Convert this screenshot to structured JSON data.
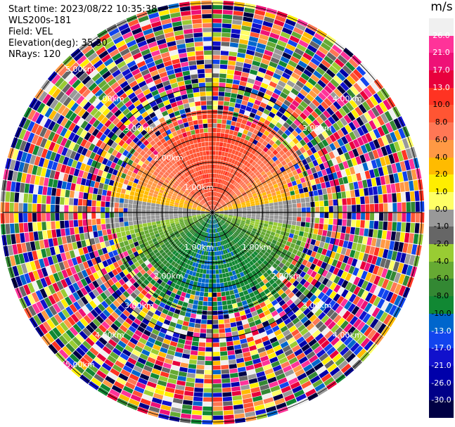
{
  "header": {
    "start_time": "Start time: 2023/08/22 10:35:38",
    "instrument": "WLS200s-181",
    "field": "Field: VEL",
    "elevation": "Elevation(deg): 35.30",
    "nrays": "NRays: 120"
  },
  "range_labels": {
    "r1": "1.00km",
    "r2": "2.00km",
    "r3": "3.00km",
    "r4": "4.00km",
    "r5": "5.00km"
  },
  "colorbar": {
    "unit": "m/s",
    "ticks": [
      "26.0",
      "21.0",
      "17.0",
      "13.0",
      "10.0",
      "8.0",
      "6.0",
      "4.0",
      "2.0",
      "1.0",
      "0.0",
      "-1.0",
      "-2.0",
      "-4.0",
      "-6.0",
      "-8.0",
      "-10.0",
      "-13.0",
      "-17.0",
      "-21.0",
      "-26.0",
      "-30.0"
    ],
    "colors": [
      "#f0f0f0",
      "#ff3399",
      "#ee1177",
      "#e8003c",
      "#ff3322",
      "#ff5533",
      "#ff7755",
      "#ff9944",
      "#ffbb00",
      "#ffee00",
      "#ffff66",
      "#999999",
      "#666666",
      "#99cc33",
      "#66aa33",
      "#338833",
      "#118833",
      "#0066cc",
      "#1144ee",
      "#1111cc",
      "#0000aa",
      "#000088",
      "#000044"
    ]
  },
  "chart_data": {
    "type": "heatmap",
    "title": "",
    "field": "VEL",
    "unit": "m/s",
    "nrays": 120,
    "range_rings_km": [
      1,
      2,
      3,
      4,
      5
    ],
    "max_range_km": 5.0,
    "color_scale": {
      "min": -30,
      "max": 26
    },
    "clear_air_pattern": {
      "inner_range_km": 2.6,
      "north_sector": "warm (6 to 10 m/s)",
      "south_sector": "cool (-4 to -10 m/s)",
      "near_zero_band": "gray (0 to -1 m/s)",
      "outer_range": "noise (random full-scale values)"
    }
  }
}
